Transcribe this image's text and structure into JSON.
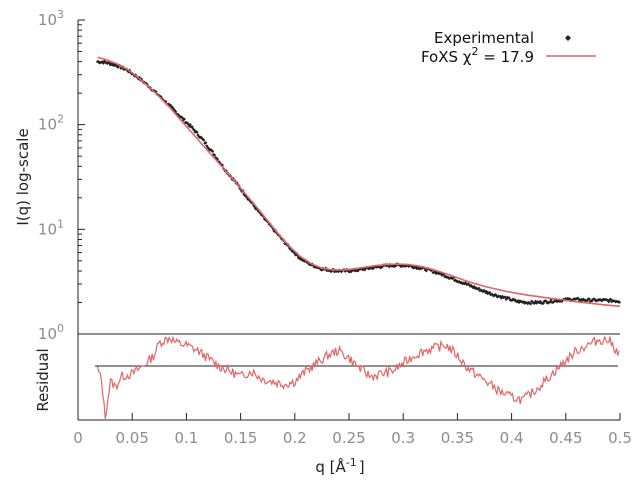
{
  "chart_data": {
    "type": "line",
    "xlabel_base": "q [Å",
    "xlabel_sup": "-1",
    "xlabel_end": "]",
    "ylabel_top": "I(q) log-scale",
    "ylabel_bottom": "Residual",
    "xlim": [
      0,
      0.5
    ],
    "ylim": [
      1,
      1000
    ],
    "yscale": "log",
    "grid": false,
    "legend_position": "top-right",
    "x_ticks": [
      "0",
      "0.05",
      "0.1",
      "0.15",
      "0.2",
      "0.25",
      "0.3",
      "0.35",
      "0.4",
      "0.45",
      "0.5"
    ],
    "y_ticks": [
      {
        "base": "10",
        "exp": "0",
        "value": 1
      },
      {
        "base": "10",
        "exp": "1",
        "value": 10
      },
      {
        "base": "10",
        "exp": "2",
        "value": 100
      },
      {
        "base": "10",
        "exp": "3",
        "value": 1000
      }
    ],
    "legend": {
      "experimental": "Experimental",
      "fit_prefix": "FoXS χ",
      "fit_sup": "2",
      "fit_suffix": " = 17.9"
    },
    "series": [
      {
        "name": "Experimental",
        "color": "#222222",
        "x": [
          0.018,
          0.025,
          0.035,
          0.045,
          0.055,
          0.065,
          0.075,
          0.085,
          0.095,
          0.105,
          0.115,
          0.125,
          0.135,
          0.145,
          0.155,
          0.165,
          0.175,
          0.185,
          0.195,
          0.205,
          0.215,
          0.225,
          0.235,
          0.245,
          0.255,
          0.265,
          0.275,
          0.285,
          0.295,
          0.305,
          0.315,
          0.325,
          0.335,
          0.345,
          0.355,
          0.365,
          0.375,
          0.385,
          0.395,
          0.405,
          0.415,
          0.425,
          0.435,
          0.445,
          0.455,
          0.465,
          0.475,
          0.485,
          0.495,
          0.5
        ],
        "y": [
          400,
          395,
          370,
          335,
          285,
          235,
          188,
          150,
          118,
          94,
          72,
          53,
          38,
          28.5,
          21,
          15.5,
          11.6,
          8.8,
          6.7,
          5.3,
          4.6,
          4.2,
          4.05,
          4.0,
          4.05,
          4.2,
          4.35,
          4.5,
          4.55,
          4.5,
          4.3,
          4.05,
          3.75,
          3.4,
          3.1,
          2.8,
          2.55,
          2.35,
          2.2,
          2.05,
          2.0,
          2.0,
          2.05,
          2.1,
          2.15,
          2.12,
          2.1,
          2.1,
          2.08,
          2.05
        ]
      },
      {
        "name": "FoXS χ2 = 17.9",
        "color": "#e06666",
        "x": [
          0.018,
          0.025,
          0.035,
          0.045,
          0.055,
          0.065,
          0.075,
          0.085,
          0.095,
          0.105,
          0.115,
          0.125,
          0.135,
          0.145,
          0.155,
          0.165,
          0.175,
          0.185,
          0.195,
          0.205,
          0.215,
          0.225,
          0.235,
          0.245,
          0.255,
          0.265,
          0.275,
          0.285,
          0.295,
          0.305,
          0.315,
          0.325,
          0.335,
          0.345,
          0.355,
          0.365,
          0.375,
          0.385,
          0.395,
          0.405,
          0.415,
          0.425,
          0.435,
          0.445,
          0.455,
          0.465,
          0.475,
          0.485,
          0.495,
          0.5
        ],
        "y": [
          440,
          420,
          385,
          340,
          285,
          232,
          185,
          145,
          110,
          84,
          64,
          49,
          37.5,
          28.5,
          21.5,
          16.2,
          12.1,
          9.0,
          6.9,
          5.5,
          4.7,
          4.25,
          4.1,
          4.1,
          4.2,
          4.35,
          4.5,
          4.6,
          4.65,
          4.6,
          4.45,
          4.2,
          3.9,
          3.6,
          3.3,
          3.05,
          2.85,
          2.7,
          2.55,
          2.45,
          2.35,
          2.27,
          2.2,
          2.13,
          2.06,
          2.0,
          1.95,
          1.9,
          1.86,
          1.84
        ]
      }
    ],
    "residual": {
      "color": "#e06666",
      "x": [
        0.018,
        0.022,
        0.025,
        0.027,
        0.03,
        0.035,
        0.04,
        0.05,
        0.06,
        0.07,
        0.075,
        0.08,
        0.085,
        0.09,
        0.1,
        0.11,
        0.12,
        0.13,
        0.14,
        0.15,
        0.16,
        0.17,
        0.18,
        0.19,
        0.2,
        0.21,
        0.22,
        0.23,
        0.24,
        0.25,
        0.26,
        0.27,
        0.28,
        0.29,
        0.3,
        0.31,
        0.32,
        0.33,
        0.34,
        0.35,
        0.36,
        0.37,
        0.38,
        0.39,
        0.4,
        0.41,
        0.42,
        0.43,
        0.44,
        0.45,
        0.46,
        0.47,
        0.48,
        0.49,
        0.5
      ],
      "y": [
        -0.05,
        -0.3,
        -1.0,
        -0.7,
        -0.3,
        -0.4,
        -0.2,
        -0.15,
        0.0,
        0.2,
        0.45,
        0.5,
        0.55,
        0.45,
        0.4,
        0.3,
        0.15,
        0.0,
        -0.1,
        -0.2,
        -0.1,
        -0.25,
        -0.3,
        -0.35,
        -0.3,
        -0.1,
        0.05,
        0.2,
        0.3,
        0.15,
        -0.05,
        -0.2,
        -0.15,
        -0.1,
        0.05,
        0.2,
        0.3,
        0.35,
        0.4,
        0.2,
        -0.05,
        -0.2,
        -0.35,
        -0.5,
        -0.6,
        -0.65,
        -0.5,
        -0.3,
        -0.1,
        0.1,
        0.3,
        0.4,
        0.5,
        0.5,
        0.2
      ]
    }
  }
}
